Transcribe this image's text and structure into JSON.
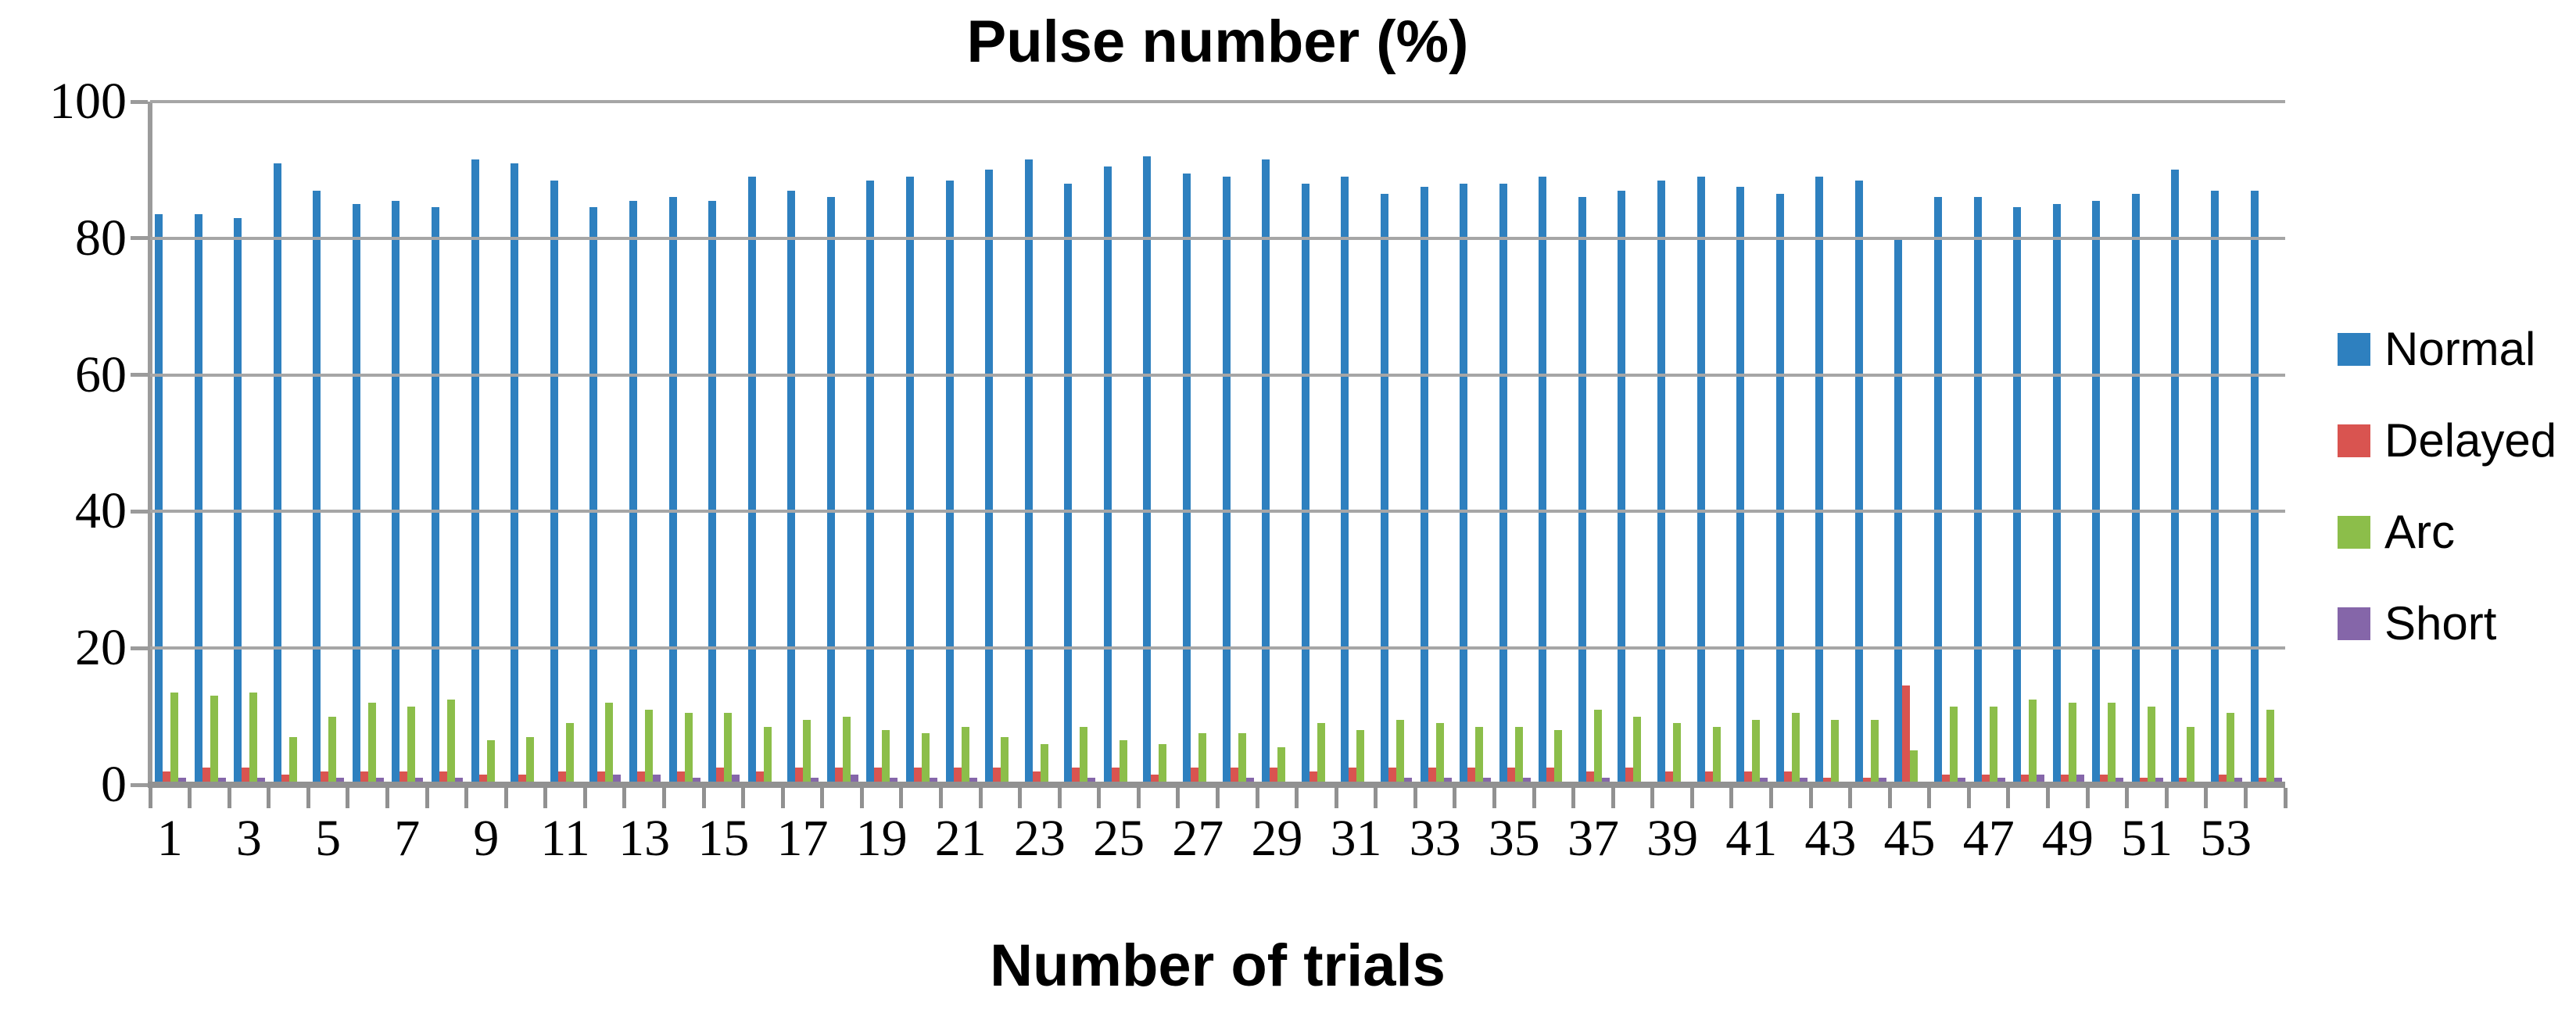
{
  "chart_data": {
    "type": "bar",
    "title": "Pulse number (%)",
    "xlabel": "Number of trials",
    "ylabel": "",
    "ylim": [
      0,
      100
    ],
    "yticks": [
      0,
      20,
      40,
      60,
      80,
      100
    ],
    "grid": true,
    "legend_position": "right",
    "x_label_every": 2,
    "categories": [
      1,
      2,
      3,
      4,
      5,
      6,
      7,
      8,
      9,
      10,
      11,
      12,
      13,
      14,
      15,
      16,
      17,
      18,
      19,
      20,
      21,
      22,
      23,
      24,
      25,
      26,
      27,
      28,
      29,
      30,
      31,
      32,
      33,
      34,
      35,
      36,
      37,
      38,
      39,
      40,
      41,
      42,
      43,
      44,
      45,
      46,
      47,
      48,
      49,
      50,
      51,
      52,
      53,
      54
    ],
    "series": [
      {
        "name": "Normal",
        "color": "#2e80bf",
        "values": [
          83.5,
          83.5,
          83,
          91,
          87,
          85,
          85.5,
          84.5,
          91.5,
          91,
          88.5,
          84.5,
          85.5,
          86,
          85.5,
          89,
          87,
          86,
          88.5,
          89,
          88.5,
          90,
          91.5,
          88,
          90.5,
          92,
          89.5,
          89,
          91.5,
          88,
          89,
          86.5,
          87.5,
          88,
          88,
          89,
          86,
          87,
          88.5,
          89,
          87.5,
          86.5,
          89,
          88.5,
          80,
          86,
          86,
          84.5,
          85,
          85.5,
          86.5,
          90,
          87,
          87
        ]
      },
      {
        "name": "Delayed",
        "color": "#d95450",
        "values": [
          2,
          2.5,
          2.5,
          1.5,
          2,
          2,
          2,
          2,
          1.5,
          1.5,
          2,
          2,
          2,
          2,
          2.5,
          2,
          2.5,
          2.5,
          2.5,
          2.5,
          2.5,
          2.5,
          2,
          2.5,
          2.5,
          1.5,
          2.5,
          2.5,
          2.5,
          2,
          2.5,
          2.5,
          2.5,
          2.5,
          2.5,
          2.5,
          2,
          2.5,
          2,
          2,
          2,
          2,
          1,
          1,
          14.5,
          1.5,
          1.5,
          1.5,
          1.5,
          1.5,
          1,
          1,
          1.5,
          1
        ]
      },
      {
        "name": "Arc",
        "color": "#8cbe4a",
        "values": [
          13.5,
          13,
          13.5,
          7,
          10,
          12,
          11.5,
          12.5,
          6.5,
          7,
          9,
          12,
          11,
          10.5,
          10.5,
          8.5,
          9.5,
          10,
          8,
          7.5,
          8.5,
          7,
          6,
          8.5,
          6.5,
          6,
          7.5,
          7.5,
          5.5,
          9,
          8,
          9.5,
          9,
          8.5,
          8.5,
          8,
          11,
          10,
          9,
          8.5,
          9.5,
          10.5,
          9.5,
          9.5,
          5,
          11.5,
          11.5,
          12.5,
          12,
          12,
          11.5,
          8.5,
          10.5,
          11
        ]
      },
      {
        "name": "Short",
        "color": "#8566a9",
        "values": [
          1,
          1,
          1,
          0.5,
          1,
          1,
          1,
          1,
          0.5,
          0.5,
          0.5,
          1.5,
          1.5,
          1,
          1.5,
          0.5,
          1,
          1.5,
          1,
          1,
          1,
          0.5,
          0.5,
          1,
          0.5,
          0.5,
          0.5,
          1,
          0.5,
          0.5,
          0.5,
          1,
          1,
          1,
          1,
          0.5,
          1,
          0.5,
          0.5,
          0.5,
          1,
          1,
          0.5,
          1,
          0.25,
          1,
          1,
          1.5,
          1.5,
          1,
          1,
          0.5,
          1,
          1
        ]
      }
    ],
    "colors": {
      "gridline": "#a6a6a6",
      "axis": "#919191",
      "text": "#000000",
      "background": "#ffffff"
    }
  }
}
